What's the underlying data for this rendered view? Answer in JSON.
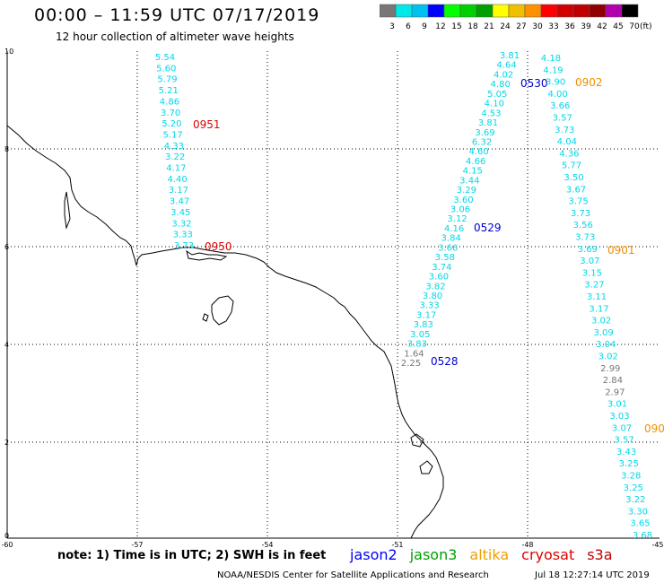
{
  "header": {
    "title": "00:00 – 11:59 UTC 07/17/2019",
    "subtitle": "12 hour collection of altimeter wave heights"
  },
  "colorbar": {
    "colors": [
      "#777777",
      "#00e8e8",
      "#00c0f0",
      "#0000ff",
      "#00ff00",
      "#00d000",
      "#00a000",
      "#ffff00",
      "#f0c000",
      "#ff9000",
      "#ff0000",
      "#d00000",
      "#c00000",
      "#900000",
      "#b000b0",
      "#000000"
    ],
    "labels": [
      "3",
      "6",
      "9",
      "12",
      "15",
      "18",
      "21",
      "24",
      "27",
      "30",
      "33",
      "36",
      "39",
      "42",
      "45",
      "70"
    ],
    "unit": "(ft)"
  },
  "axes": {
    "lon_ticks": [
      "-60",
      "-57",
      "-54",
      "-51",
      "-48",
      "-45"
    ],
    "lat_ticks": [
      "10",
      "8",
      "6",
      "4",
      "2",
      "0"
    ],
    "lon_range": [
      -60,
      -45
    ],
    "lat_range": [
      0,
      10
    ]
  },
  "tracks": [
    {
      "label": "0951",
      "color": "#e00000",
      "values": [
        "5.54",
        "5.60",
        "5.79",
        "5.21",
        "4.86",
        "3.70",
        "5.20",
        "5.17",
        "4.33",
        "3.22",
        "4.17",
        "4.40",
        "3.17",
        "3.47",
        "3.45",
        "3.32",
        "3.33",
        "3.73"
      ]
    },
    {
      "label": "0950",
      "color": "#e00000",
      "values": []
    },
    {
      "label": "0529",
      "color": "#0000d0",
      "values": [
        "3.81",
        "4.64",
        "4.02",
        "4.80",
        "5.05",
        "4.10",
        "4.53",
        "3.81",
        "3.69",
        "6.32",
        "4.60",
        "4.66",
        "4.15",
        "3.44",
        "3.29",
        "3.60",
        "3.06",
        "3.12",
        "4.16",
        "3.84",
        "3.66",
        "3.58",
        "3.74",
        "3.60",
        "3.82",
        "3.80",
        "3.33",
        "3.17",
        "3.83",
        "3.05",
        "3.83",
        "1.64",
        "2.25"
      ]
    },
    {
      "label": "0530",
      "color": "#0000d0",
      "values": []
    },
    {
      "label": "0528",
      "color": "#0000d0",
      "values": []
    },
    {
      "label": "0902",
      "color": "#f09000",
      "values": [
        "4.18",
        "4.19",
        "3.90",
        "4.00",
        "3.66",
        "3.57",
        "3.73",
        "4.04",
        "4.36",
        "5.77",
        "3.50",
        "3.67",
        "3.75",
        "3.73",
        "3.56",
        "3.73",
        "3.69",
        "3.07",
        "3.15",
        "3.27",
        "3.11",
        "3.17",
        "3.02",
        "3.09",
        "3.04",
        "3.02",
        "2.99",
        "2.84",
        "2.97",
        "3.01",
        "3.03",
        "3.07",
        "3.57",
        "3.43",
        "3.25",
        "3.28",
        "3.25",
        "3.22",
        "3.30",
        "3.65",
        "3.68"
      ]
    },
    {
      "label": "0901",
      "color": "#f09000",
      "values": []
    },
    {
      "label": "090",
      "color": "#f09000",
      "values": []
    }
  ],
  "note": "note: 1) Time is in UTC; 2) SWH is in feet",
  "legend": [
    {
      "name": "jason2",
      "color": "#0000ff"
    },
    {
      "name": "jason3",
      "color": "#00a000"
    },
    {
      "name": "altika",
      "color": "#f0a000"
    },
    {
      "name": "cryosat",
      "color": "#e00000"
    },
    {
      "name": "s3a",
      "color": "#c00000"
    }
  ],
  "footer": {
    "center": "NOAA/NESDIS Center for Satellite Applications and Research",
    "timestamp": "Jul 18 12:27:14 UTC 2019"
  }
}
